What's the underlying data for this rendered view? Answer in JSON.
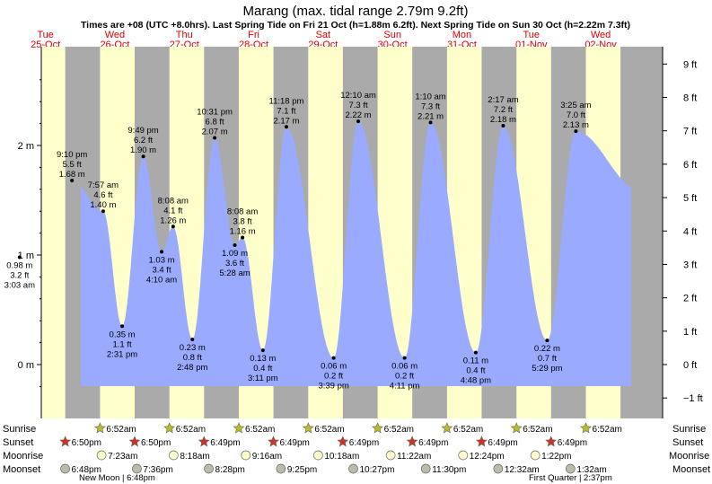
{
  "title": "Marang (max. tidal range 2.79m 9.2ft)",
  "subtitle": "Times are +08 (UTC +8.0hrs). Last Spring Tide on Fri 21 Oct (h=1.88m 6.2ft). Next Spring Tide on Sun 30 Oct (h=2.22m 7.3ft)",
  "colors": {
    "day_band": "#ffffcc",
    "night_band": "#aaaaaa",
    "water": "#99aaff",
    "date_label": "#dd0000",
    "sun_marker": "#bbbb22",
    "sunset_marker": "#cc3322",
    "moonrise_marker": "#ffffcc",
    "moonset_marker": "#bbbbaa"
  },
  "days": [
    {
      "weekday": "Tue",
      "date": "25-Oct"
    },
    {
      "weekday": "Wed",
      "date": "26-Oct"
    },
    {
      "weekday": "Thu",
      "date": "27-Oct"
    },
    {
      "weekday": "Fri",
      "date": "28-Oct"
    },
    {
      "weekday": "Sat",
      "date": "29-Oct"
    },
    {
      "weekday": "Sun",
      "date": "30-Oct"
    },
    {
      "weekday": "Mon",
      "date": "31-Oct"
    },
    {
      "weekday": "Tue",
      "date": "01-Nov"
    },
    {
      "weekday": "Wed",
      "date": "02-Nov"
    }
  ],
  "chart_data": {
    "type": "area",
    "title": "Marang (max. tidal range 2.79m 9.2ft)",
    "x_unit": "day",
    "y_unit": "m",
    "ylim": [
      -0.3,
      2.85
    ],
    "left_ticks": [
      {
        "label": "0 m",
        "value": 0
      },
      {
        "label": "1 m",
        "value": 1
      },
      {
        "label": "2 m",
        "value": 2
      }
    ],
    "right_ticks": [
      {
        "label": "−1 ft",
        "value": -0.3048
      },
      {
        "label": "0 ft",
        "value": 0
      },
      {
        "label": "1 ft",
        "value": 0.3048
      },
      {
        "label": "2 ft",
        "value": 0.6096
      },
      {
        "label": "3 ft",
        "value": 0.9144
      },
      {
        "label": "4 ft",
        "value": 1.2192
      },
      {
        "label": "5 ft",
        "value": 1.524
      },
      {
        "label": "6 ft",
        "value": 1.8288
      },
      {
        "label": "7 ft",
        "value": 2.1336
      },
      {
        "label": "8 ft",
        "value": 2.4384
      },
      {
        "label": "9 ft",
        "value": 2.7432
      }
    ],
    "extremes": [
      {
        "day": 0,
        "time": "3:03 am",
        "height_m": "0.98 m",
        "height_ft": "3.2 ft",
        "h": 0.98,
        "type": "low"
      },
      {
        "day": 0,
        "time": "9:10 pm",
        "height_m": "1.68 m",
        "height_ft": "5.5 ft",
        "h": 1.68,
        "type": "high"
      },
      {
        "day": 1,
        "time": "7:57 am",
        "height_m": "1.40 m",
        "height_ft": "4.6 ft",
        "h": 1.4,
        "type": "high"
      },
      {
        "day": 1,
        "time": "2:31 pm",
        "height_m": "0.35 m",
        "height_ft": "1.1 ft",
        "h": 0.35,
        "type": "low"
      },
      {
        "day": 1,
        "time": "9:49 pm",
        "height_m": "1.90 m",
        "height_ft": "6.2 ft",
        "h": 1.9,
        "type": "high"
      },
      {
        "day": 2,
        "time": "4:10 am",
        "height_m": "1.03 m",
        "height_ft": "3.4 ft",
        "h": 1.03,
        "type": "low"
      },
      {
        "day": 2,
        "time": "8:08 am",
        "height_m": "1.26 m",
        "height_ft": "4.1 ft",
        "h": 1.26,
        "type": "high"
      },
      {
        "day": 2,
        "time": "2:48 pm",
        "height_m": "0.23 m",
        "height_ft": "0.8 ft",
        "h": 0.23,
        "type": "low"
      },
      {
        "day": 2,
        "time": "10:31 pm",
        "height_m": "2.07 m",
        "height_ft": "6.8 ft",
        "h": 2.07,
        "type": "high"
      },
      {
        "day": 3,
        "time": "5:28 am",
        "height_m": "1.09 m",
        "height_ft": "3.6 ft",
        "h": 1.09,
        "type": "low"
      },
      {
        "day": 3,
        "time": "8:08 am",
        "height_m": "1.16 m",
        "height_ft": "3.8 ft",
        "h": 1.16,
        "type": "high"
      },
      {
        "day": 3,
        "time": "3:11 pm",
        "height_m": "0.13 m",
        "height_ft": "0.4 ft",
        "h": 0.13,
        "type": "low"
      },
      {
        "day": 3,
        "time": "11:18 pm",
        "height_m": "2.17 m",
        "height_ft": "7.1 ft",
        "h": 2.17,
        "type": "high"
      },
      {
        "day": 4,
        "time": "3:39 pm",
        "height_m": "0.06 m",
        "height_ft": "0.2 ft",
        "h": 0.06,
        "type": "low"
      },
      {
        "day": 5,
        "time": "12:10 am",
        "height_m": "2.22 m",
        "height_ft": "7.3 ft",
        "h": 2.22,
        "type": "high"
      },
      {
        "day": 5,
        "time": "4:11 pm",
        "height_m": "0.06 m",
        "height_ft": "0.2 ft",
        "h": 0.06,
        "type": "low"
      },
      {
        "day": 6,
        "time": "1:10 am",
        "height_m": "2.21 m",
        "height_ft": "7.3 ft",
        "h": 2.21,
        "type": "high"
      },
      {
        "day": 6,
        "time": "4:48 pm",
        "height_m": "0.11 m",
        "height_ft": "0.4 ft",
        "h": 0.11,
        "type": "low"
      },
      {
        "day": 7,
        "time": "2:17 am",
        "height_m": "2.18 m",
        "height_ft": "7.2 ft",
        "h": 2.18,
        "type": "high"
      },
      {
        "day": 7,
        "time": "5:29 pm",
        "height_m": "0.22 m",
        "height_ft": "0.7 ft",
        "h": 0.22,
        "type": "low"
      },
      {
        "day": 8,
        "time": "3:25 am",
        "height_m": "2.13 m",
        "height_ft": "7.0 ft",
        "h": 2.13,
        "type": "high"
      }
    ]
  },
  "rows": {
    "sunrise": {
      "label": "Sunrise",
      "times": [
        "6:52am",
        "6:52am",
        "6:52am",
        "6:52am",
        "6:52am",
        "6:52am",
        "6:52am",
        "6:52am"
      ]
    },
    "sunset": {
      "label": "Sunset",
      "times": [
        "6:50pm",
        "6:50pm",
        "6:49pm",
        "6:49pm",
        "6:49pm",
        "6:49pm",
        "6:49pm",
        "6:49pm"
      ]
    },
    "moonrise": {
      "label": "Moonrise",
      "times": [
        "7:23am",
        "8:18am",
        "9:16am",
        "10:18am",
        "11:22am",
        "12:24pm",
        "1:22pm"
      ]
    },
    "moonset": {
      "label": "Moonset",
      "times": [
        "6:48pm",
        "7:36pm",
        "8:28pm",
        "9:25pm",
        "10:27pm",
        "11:30pm",
        "12:32am",
        "1:32am"
      ]
    }
  },
  "moon_phases": [
    {
      "label": "New Moon | 6:48pm"
    },
    {
      "label": "First Quarter | 2:37pm"
    }
  ]
}
